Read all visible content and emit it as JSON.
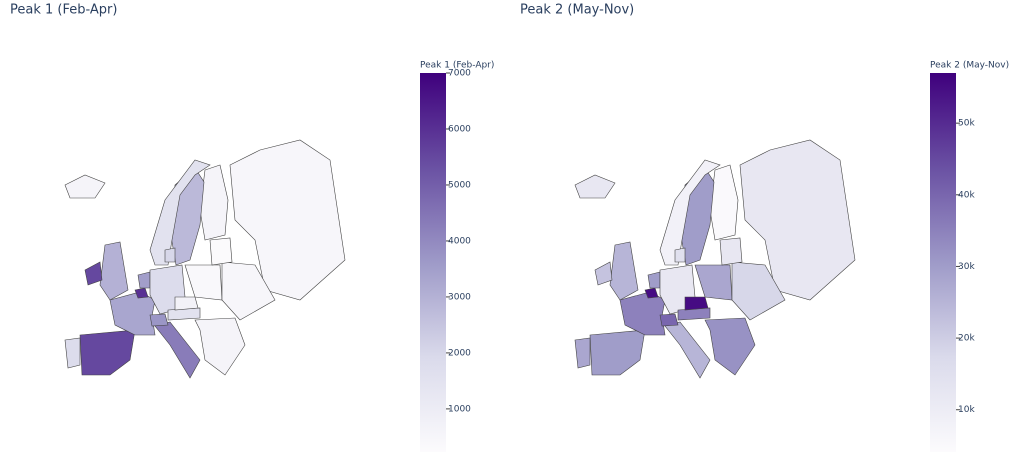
{
  "chart_data": [
    {
      "type": "choropleth",
      "title": "Peak 1 (Feb-Apr)",
      "colorbar_title": "Peak 1 (Feb-Apr)",
      "colorscale": [
        "#fcfbfd",
        "#dadaeb",
        "#9e9ac8",
        "#6a51a3",
        "#3f007d"
      ],
      "zlim": [
        230,
        7000
      ],
      "zticks": [
        1000,
        2000,
        3000,
        4000,
        5000,
        6000,
        7000
      ],
      "values": [
        500,
        600,
        2800,
        1500,
        600,
        3000,
        5500,
        5500,
        1800,
        3300,
        6000,
        3500,
        1800,
        4300,
        3700,
        1500,
        400,
        700,
        500,
        600,
        2000,
        300
      ]
    },
    {
      "type": "choropleth",
      "title": "Peak 2 (May-Nov)",
      "colorbar_title": "Peak 2 (May-Nov)",
      "colorscale": [
        "#fcfbfd",
        "#dadaeb",
        "#9e9ac8",
        "#6a51a3",
        "#3f007d"
      ],
      "zlim": [
        4100,
        57000
      ],
      "zticks": [
        {
          "value": 10000,
          "label": "10k"
        },
        {
          "value": 20000,
          "label": "20k"
        },
        {
          "value": 30000,
          "label": "30k"
        },
        {
          "value": 40000,
          "label": "40k"
        },
        {
          "value": 50000,
          "label": "50k"
        }
      ],
      "values": [
        12000,
        5000,
        30000,
        8000,
        12000,
        25000,
        22000,
        30000,
        28000,
        35000,
        55000,
        30000,
        12000,
        25000,
        40000,
        35000,
        28000,
        55000,
        18000,
        32000,
        15000,
        12000
      ]
    }
  ]
}
